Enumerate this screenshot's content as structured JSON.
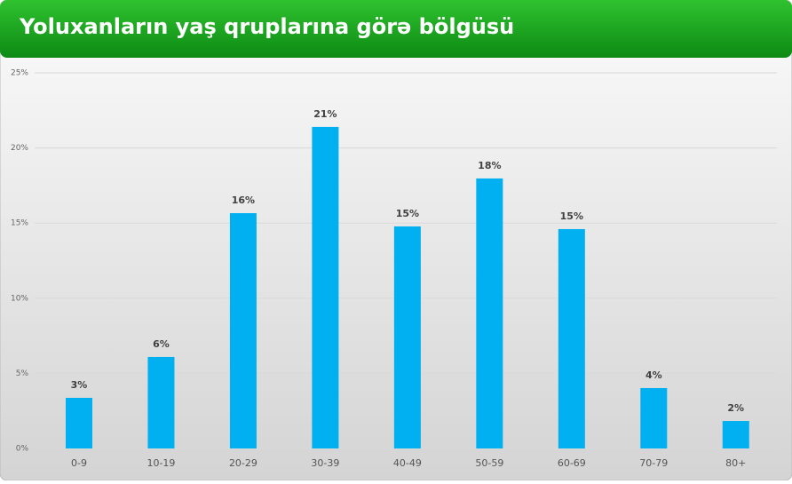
{
  "chart_data": {
    "type": "bar",
    "title": "Yoluxanların yaş qruplarına görə bölgüsü",
    "categories": [
      "0-9",
      "10-19",
      "20-29",
      "30-39",
      "40-49",
      "50-59",
      "60-69",
      "70-79",
      "80+"
    ],
    "values": [
      3.37,
      6.09,
      15.66,
      21.4,
      14.78,
      17.97,
      14.6,
      4.02,
      1.83
    ],
    "value_labels": [
      "3%",
      "6%",
      "16%",
      "21%",
      "15%",
      "18%",
      "15%",
      "4%",
      "2%"
    ],
    "color": "#00b0f0",
    "ylim": [
      0,
      25
    ],
    "yticks": [
      {
        "value": 0,
        "label": "0%"
      },
      {
        "value": 5,
        "label": "5%"
      },
      {
        "value": 10,
        "label": "10%"
      },
      {
        "value": 15,
        "label": "15%"
      },
      {
        "value": 20,
        "label": "20%"
      },
      {
        "value": 25,
        "label": "25%"
      }
    ],
    "grid": true
  }
}
